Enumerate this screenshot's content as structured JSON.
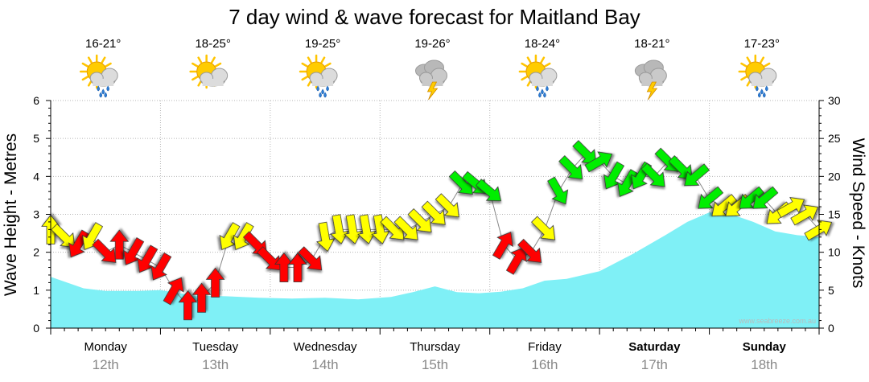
{
  "chart_data": {
    "type": "area",
    "title": "7 day wind & wave forecast for Maitland Bay",
    "ylabel_left": "Wave Height - Metres",
    "ylabel_right": "Wind Speed - Knots",
    "ylim_left": [
      0,
      6
    ],
    "ylim_right": [
      0,
      30
    ],
    "yticks_left": [
      "0",
      "1",
      "2",
      "3",
      "4",
      "5",
      "6"
    ],
    "yticks_right": [
      "0",
      "5",
      "10",
      "15",
      "20",
      "25",
      "30"
    ],
    "watermark": "www.seabreeze.com.au",
    "colors": {
      "wave": "#7ff0f6",
      "wind_red": "#ff0000",
      "wind_yellow": "#ffff00",
      "wind_green": "#00ee00"
    },
    "days": [
      {
        "name": "Monday",
        "date": "12th",
        "temp": "16-21°",
        "icon": "sun-cloud-rain-icon",
        "bold": false
      },
      {
        "name": "Tuesday",
        "date": "13th",
        "temp": "18-25°",
        "icon": "sun-cloud-icon",
        "bold": false
      },
      {
        "name": "Wednesday",
        "date": "14th",
        "temp": "19-25°",
        "icon": "sun-cloud-rain-icon",
        "bold": false
      },
      {
        "name": "Thursday",
        "date": "15th",
        "temp": "19-26°",
        "icon": "storm-icon",
        "bold": false
      },
      {
        "name": "Friday",
        "date": "16th",
        "temp": "18-24°",
        "icon": "sun-cloud-rain-icon",
        "bold": false
      },
      {
        "name": "Saturday",
        "date": "17th",
        "temp": "18-21°",
        "icon": "storm-icon",
        "bold": true
      },
      {
        "name": "Sunday",
        "date": "18th",
        "temp": "17-23°",
        "icon": "sun-cloud-rain-icon",
        "bold": true
      }
    ],
    "wave_series": {
      "name": "Wave Height (m)",
      "x_days": [
        0,
        0.15,
        0.3,
        0.5,
        0.8,
        1.0,
        1.3,
        1.6,
        1.9,
        2.2,
        2.5,
        2.8,
        3.1,
        3.3,
        3.5,
        3.7,
        3.9,
        4.1,
        4.3,
        4.5,
        4.7,
        5.0,
        5.3,
        5.6,
        5.8,
        6.0,
        6.2,
        6.4,
        6.6,
        6.8,
        7.0
      ],
      "values": [
        1.35,
        1.2,
        1.05,
        0.98,
        0.98,
        1.0,
        0.86,
        0.84,
        0.8,
        0.78,
        0.8,
        0.76,
        0.82,
        0.95,
        1.1,
        0.95,
        0.92,
        0.96,
        1.05,
        1.25,
        1.3,
        1.5,
        1.95,
        2.45,
        2.8,
        3.05,
        3.0,
        2.8,
        2.55,
        2.45,
        2.4
      ]
    },
    "wind_series": {
      "name": "Wind Speed (knots)",
      "x_days": [
        0.0,
        0.125,
        0.25,
        0.375,
        0.5,
        0.625,
        0.75,
        0.875,
        1.0,
        1.125,
        1.25,
        1.375,
        1.5,
        1.625,
        1.75,
        1.875,
        2.0,
        2.125,
        2.25,
        2.375,
        2.5,
        2.625,
        2.75,
        2.875,
        3.0,
        3.125,
        3.25,
        3.375,
        3.5,
        3.625,
        3.75,
        3.875,
        4.0,
        4.125,
        4.25,
        4.375,
        4.5,
        4.625,
        4.75,
        4.875,
        5.0,
        5.125,
        5.25,
        5.375,
        5.5,
        5.625,
        5.75,
        5.875,
        6.0,
        6.125,
        6.25,
        6.375,
        6.5,
        6.625,
        6.75,
        6.875,
        7.0
      ],
      "values": [
        13,
        12,
        11,
        12,
        10,
        11,
        10,
        9,
        8,
        5,
        3,
        4,
        6,
        12,
        12,
        11,
        9,
        8,
        8,
        9,
        12,
        13,
        13,
        13,
        13,
        13,
        13,
        14,
        15,
        16,
        19,
        19,
        18,
        11,
        9,
        10,
        13,
        18,
        21,
        23,
        22,
        20,
        19,
        20,
        20,
        22,
        21,
        20,
        17,
        16,
        16,
        17,
        17,
        15,
        16,
        15,
        13
      ],
      "directions_deg": [
        270,
        45,
        120,
        120,
        45,
        270,
        120,
        120,
        120,
        300,
        270,
        270,
        270,
        120,
        120,
        45,
        45,
        270,
        270,
        45,
        80,
        80,
        80,
        80,
        80,
        45,
        45,
        45,
        45,
        45,
        45,
        40,
        40,
        300,
        300,
        45,
        45,
        60,
        45,
        45,
        330,
        120,
        120,
        120,
        45,
        45,
        45,
        140,
        140,
        140,
        140,
        140,
        140,
        140,
        330,
        330,
        330
      ]
    }
  }
}
